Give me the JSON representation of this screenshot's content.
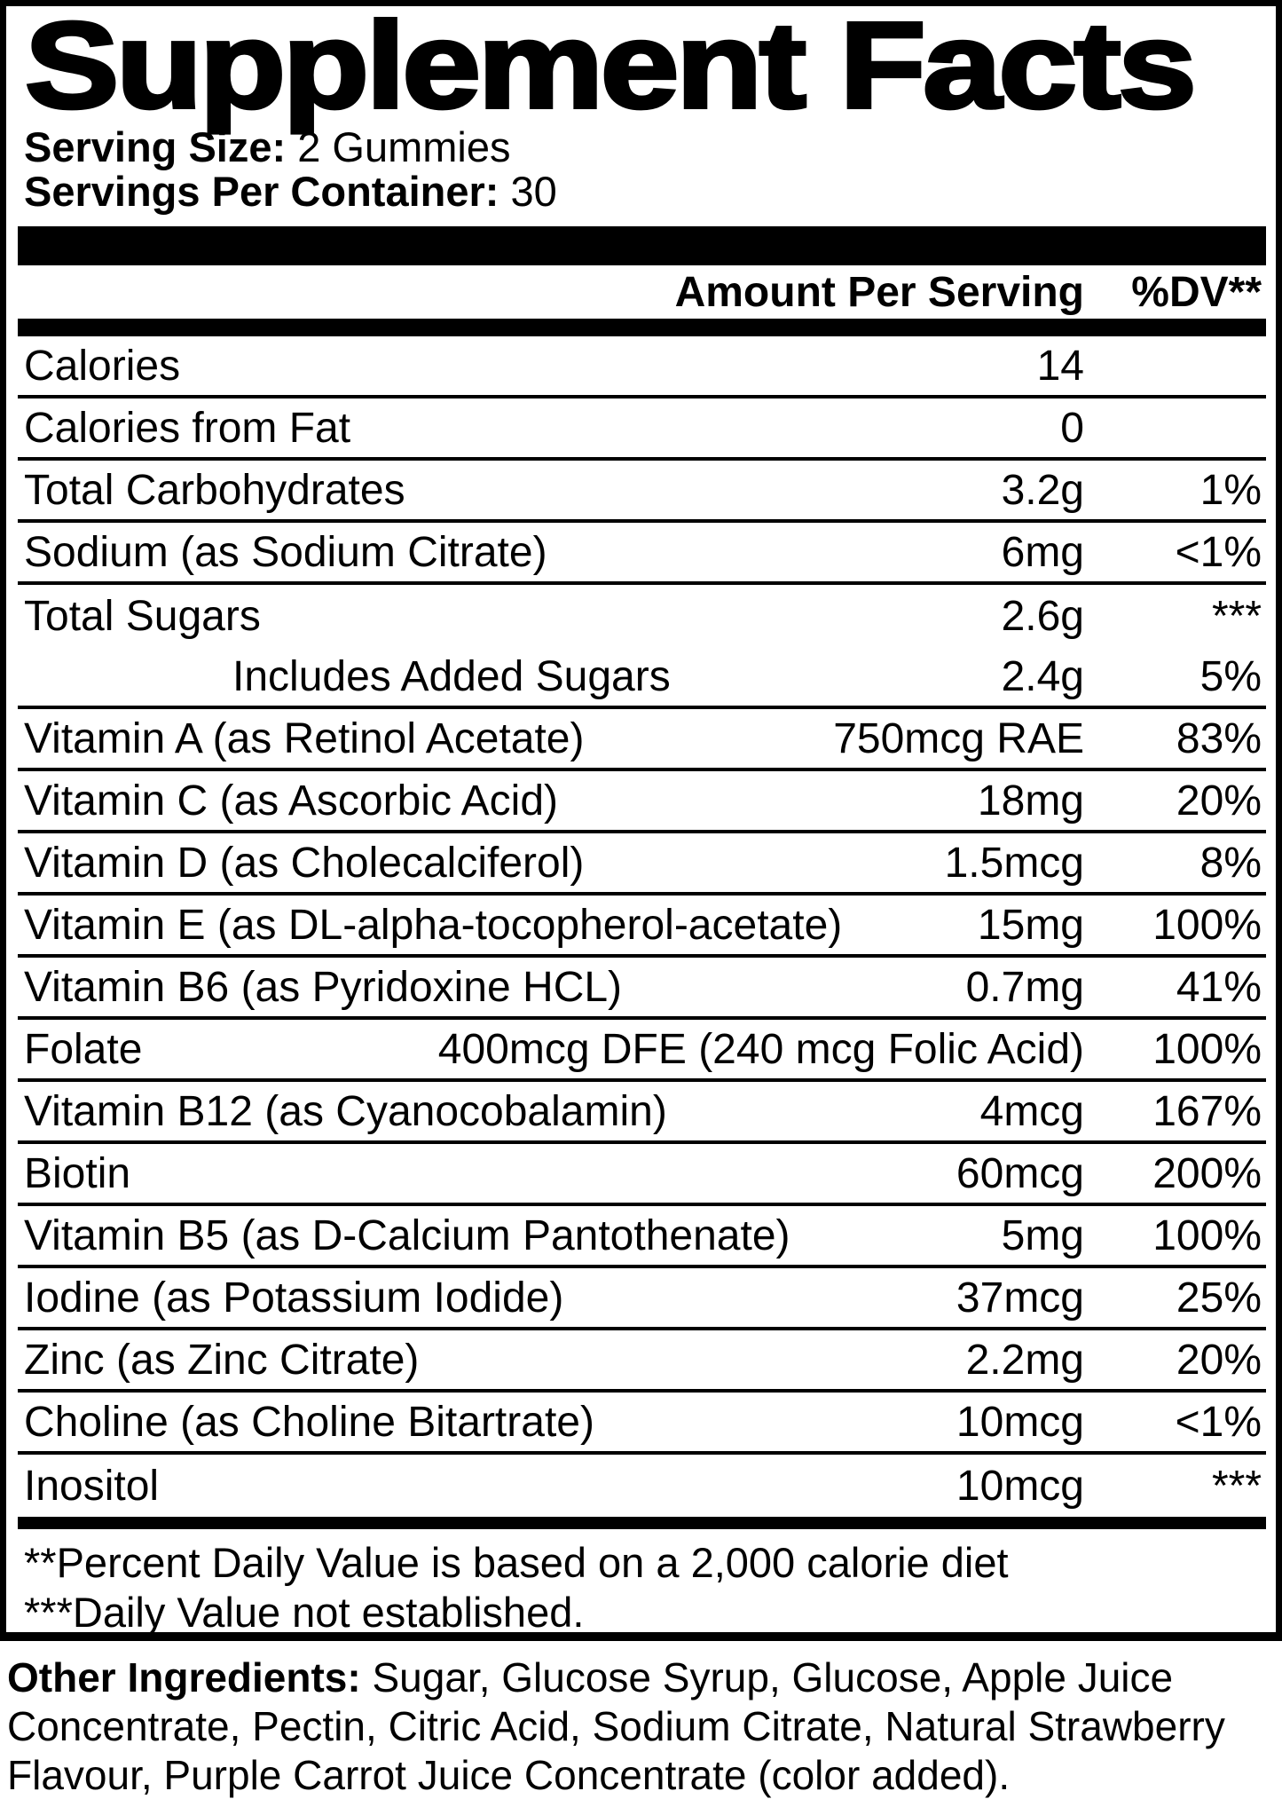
{
  "title": "Supplement Facts",
  "serving": {
    "size_label": "Serving Size:",
    "size_value": " 2 Gummies",
    "per_container_label": "Servings Per Container:",
    "per_container_value": " 30"
  },
  "columns": {
    "amount_header": "Amount Per Serving",
    "dv_header": "%DV**"
  },
  "rows": [
    {
      "name": "Calories",
      "amount": "14",
      "dv": "",
      "indent": false,
      "divider": true
    },
    {
      "name": "Calories from Fat",
      "amount": "0",
      "dv": "",
      "indent": false,
      "divider": true
    },
    {
      "name": "Total Carbohydrates",
      "amount": "3.2g",
      "dv": "1%",
      "indent": false,
      "divider": true
    },
    {
      "name": "Sodium (as Sodium Citrate)",
      "amount": "6mg",
      "dv": "<1%",
      "indent": false,
      "divider": true
    },
    {
      "name": "Total Sugars",
      "amount": "2.6g",
      "dv": "***",
      "indent": false,
      "divider": false
    },
    {
      "name": "Includes Added Sugars",
      "amount": "2.4g",
      "dv": "5%",
      "indent": true,
      "divider": true
    },
    {
      "name": "Vitamin A (as Retinol Acetate)",
      "amount": "750mcg RAE",
      "dv": "83%",
      "indent": false,
      "divider": true
    },
    {
      "name": "Vitamin C (as Ascorbic Acid)",
      "amount": "18mg",
      "dv": "20%",
      "indent": false,
      "divider": true
    },
    {
      "name": "Vitamin D (as Cholecalciferol)",
      "amount": "1.5mcg",
      "dv": "8%",
      "indent": false,
      "divider": true
    },
    {
      "name": "Vitamin E (as DL-alpha-tocopherol-acetate)",
      "amount": "15mg",
      "dv": "100%",
      "indent": false,
      "divider": true
    },
    {
      "name": "Vitamin B6 (as Pyridoxine HCL)",
      "amount": "0.7mg",
      "dv": "41%",
      "indent": false,
      "divider": true
    },
    {
      "name": "Folate",
      "amount": "400mcg DFE (240 mcg Folic Acid)",
      "dv": "100%",
      "indent": false,
      "divider": true
    },
    {
      "name": "Vitamin B12 (as Cyanocobalamin)",
      "amount": "4mcg",
      "dv": "167%",
      "indent": false,
      "divider": true
    },
    {
      "name": "Biotin",
      "amount": "60mcg",
      "dv": "200%",
      "indent": false,
      "divider": true
    },
    {
      "name": "Vitamin B5 (as D-Calcium Pantothenate)",
      "amount": "5mg",
      "dv": "100%",
      "indent": false,
      "divider": true
    },
    {
      "name": "Iodine (as Potassium Iodide)",
      "amount": "37mcg",
      "dv": "25%",
      "indent": false,
      "divider": true
    },
    {
      "name": "Zinc (as Zinc Citrate)",
      "amount": "2.2mg",
      "dv": "20%",
      "indent": false,
      "divider": true
    },
    {
      "name": "Choline (as Choline Bitartrate)",
      "amount": "10mcg",
      "dv": "<1%",
      "indent": false,
      "divider": true
    },
    {
      "name": "Inositol",
      "amount": "10mcg",
      "dv": "***",
      "indent": false,
      "divider": false
    }
  ],
  "footnotes": [
    "**Percent Daily Value is based on a 2,000 calorie diet",
    "***Daily Value not established."
  ],
  "other_ingredients": {
    "label": "Other Ingredients:",
    "text": " Sugar, Glucose Syrup, Glucose, Apple Juice\nConcentrate, Pectin, Citric Acid, Sodium Citrate, Natural Strawberry\nFlavour, Purple Carrot Juice Concentrate (color added)."
  },
  "colors": {
    "text": "#000000",
    "background": "#ffffff"
  }
}
